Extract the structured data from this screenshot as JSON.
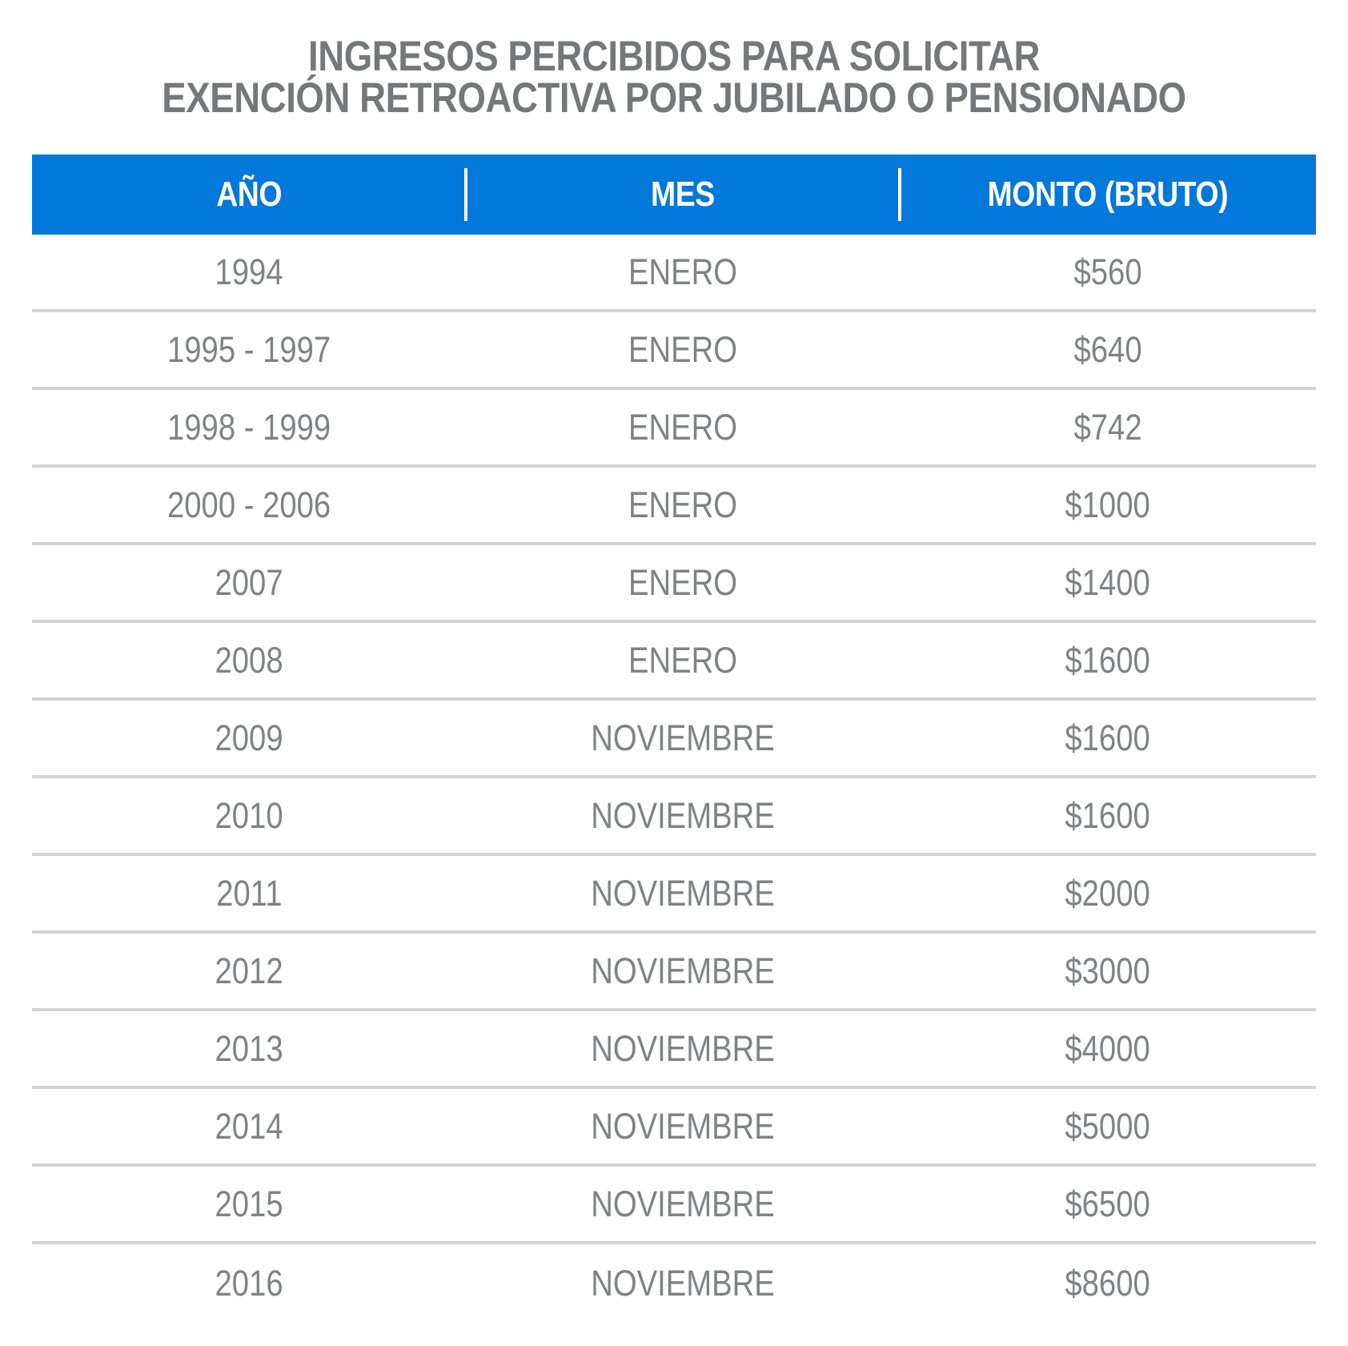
{
  "title": {
    "line1": "INGRESOS PERCIBIDOS PARA SOLICITAR",
    "line2": "EXENCIÓN RETROACTIVA POR JUBILADO O PENSIONADO"
  },
  "chart_data": {
    "type": "table",
    "title": "INGRESOS PERCIBIDOS PARA SOLICITAR EXENCIÓN RETROACTIVA POR JUBILADO O PENSIONADO",
    "columns": [
      "AÑO",
      "MES",
      "MONTO (BRUTO)"
    ],
    "rows": [
      [
        "1994",
        "ENERO",
        "$560"
      ],
      [
        "1995 - 1997",
        "ENERO",
        "$640"
      ],
      [
        "1998 - 1999",
        "ENERO",
        "$742"
      ],
      [
        "2000 - 2006",
        "ENERO",
        "$1000"
      ],
      [
        "2007",
        "ENERO",
        "$1400"
      ],
      [
        "2008",
        "ENERO",
        "$1600"
      ],
      [
        "2009",
        "NOVIEMBRE",
        "$1600"
      ],
      [
        "2010",
        "NOVIEMBRE",
        "$1600"
      ],
      [
        "2011",
        "NOVIEMBRE",
        "$2000"
      ],
      [
        "2012",
        "NOVIEMBRE",
        "$3000"
      ],
      [
        "2013",
        "NOVIEMBRE",
        "$4000"
      ],
      [
        "2014",
        "NOVIEMBRE",
        "$5000"
      ],
      [
        "2015",
        "NOVIEMBRE",
        "$6500"
      ],
      [
        "2016",
        "NOVIEMBRE",
        "$8600"
      ]
    ]
  },
  "colors": {
    "header_background": "#0278DB",
    "header_text": "#FFFFFF",
    "title_text": "#76777A",
    "cell_text": "#808285",
    "row_divider": "#D1D3D4",
    "background": "#FFFFFF"
  }
}
